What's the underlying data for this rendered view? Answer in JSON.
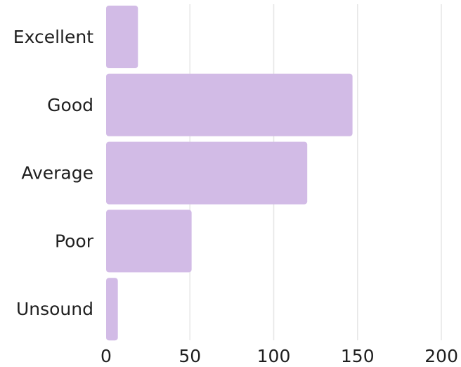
{
  "chart_data": {
    "type": "bar",
    "orientation": "horizontal",
    "title": "",
    "xlabel": "",
    "ylabel": "",
    "categories": [
      "Excellent",
      "Good",
      "Average",
      "Poor",
      "Unsound"
    ],
    "values": [
      19,
      147,
      120,
      51,
      7
    ],
    "xlim": [
      0,
      200
    ],
    "x_ticks": [
      0,
      50,
      100,
      150,
      200
    ],
    "x_tick_labels": [
      "0",
      "50",
      "100",
      "150",
      "200"
    ],
    "grid": "vertical",
    "legend": "none",
    "bar_color": "#d2bbe6",
    "grid_color": "#e6e6e6"
  }
}
